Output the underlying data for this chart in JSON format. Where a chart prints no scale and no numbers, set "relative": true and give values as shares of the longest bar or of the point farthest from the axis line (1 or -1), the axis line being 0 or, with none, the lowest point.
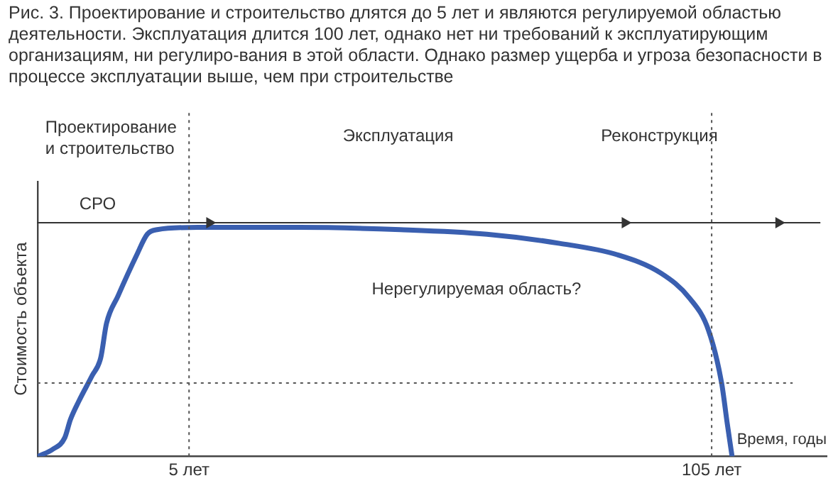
{
  "chart_data": {
    "type": "line",
    "title": "Рис. 3. Проектирование и строительство длятся до 5 лет и являются регулируемой областью деятельности. Эксплуатация длится 100 лет, однако нет ни требований к эксплуатирующим организациям, ни регулиро-вания в этой области. Однако размер ущерба и угроза безопасности в процессе эксплуатации выше, чем при строительстве",
    "xlabel": "Время, годы",
    "ylabel": "Стоимость объекта",
    "relative": true,
    "xlim": [
      -24,
      127
    ],
    "xticks": [
      {
        "value": 5,
        "label": "5 лет"
      },
      {
        "value": 105,
        "label": "105 лет"
      }
    ],
    "grid": false,
    "legend": false,
    "marker": "none",
    "line_style": "solid",
    "series": [
      {
        "color": "#3a5fb0",
        "x": [
          -23.8,
          -21.1,
          -18.8,
          -17.7,
          -16.1,
          -13.6,
          -11.9,
          -10.8,
          -8.6,
          -5.0,
          -3.0,
          -1.1,
          6.7,
          26,
          45.4,
          62,
          75.9,
          87,
          95.3,
          100.8,
          104.4,
          106.9,
          108,
          108.9
        ],
        "values": [
          0,
          0.03,
          0.08,
          0.16,
          0.24,
          0.35,
          0.43,
          0.58,
          0.7,
          0.88,
          0.97,
          0.99,
          1,
          1,
          0.99,
          0.97,
          0.93,
          0.88,
          0.8,
          0.69,
          0.55,
          0.32,
          0.14,
          0
        ]
      }
    ],
    "ref_lines": [
      {
        "axis": "x",
        "value": 5,
        "line_style": "dotted",
        "color": "#555555"
      },
      {
        "axis": "x",
        "value": 105,
        "line_style": "dotted",
        "color": "#555555"
      },
      {
        "axis": "y",
        "value": 0.32,
        "line_style": "dotted",
        "color": "#555555"
      }
    ],
    "annotations": [
      "Проектирование\nи строительство",
      "Эксплуатация",
      "Реконструкция",
      "СРО",
      "Нерегулируемая область?"
    ]
  }
}
